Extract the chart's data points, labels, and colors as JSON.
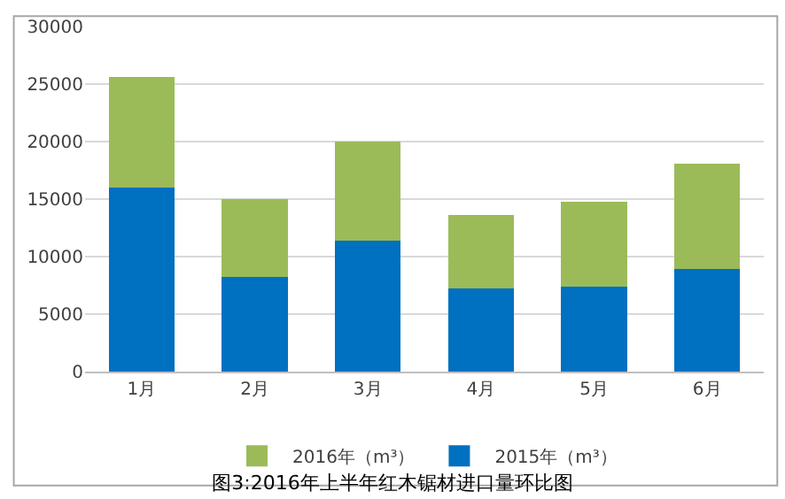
{
  "chart_data": {
    "type": "bar",
    "stacked": true,
    "title": "图3:2016年上半年红木锯材进口量环比图",
    "categories": [
      "1月",
      "2月",
      "3月",
      "4月",
      "5月",
      "6月"
    ],
    "series": [
      {
        "name": "2015年（m³）",
        "color": "#0070c0",
        "values": [
          16000,
          8200,
          11400,
          7200,
          7400,
          8900
        ]
      },
      {
        "name": "2016年（m³）",
        "color": "#9bbb59",
        "values": [
          9600,
          6800,
          8600,
          6400,
          7400,
          9200
        ]
      }
    ],
    "ylim": [
      0,
      30000
    ],
    "yticks": [
      0,
      5000,
      10000,
      15000,
      20000,
      25000,
      30000
    ],
    "grid": "y",
    "legend": "bottom"
  }
}
